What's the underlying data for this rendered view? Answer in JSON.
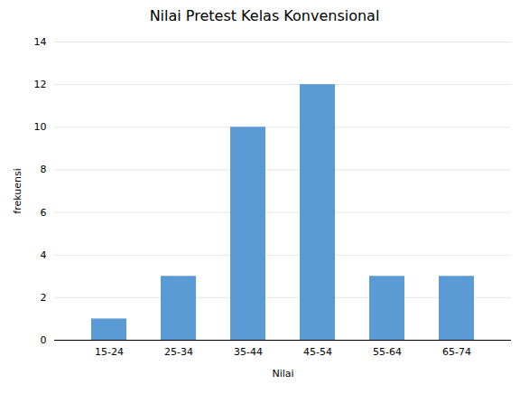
{
  "chart_data": {
    "type": "bar",
    "title": "Nilai Pretest Kelas Konvensional",
    "xlabel": "Nilai",
    "ylabel": "frekuensi",
    "categories": [
      "15-24",
      "25-34",
      "35-44",
      "45-54",
      "55-64",
      "65-74"
    ],
    "values": [
      1,
      3,
      10,
      12,
      3,
      3
    ],
    "color": "#5B9BD5",
    "ylim": [
      0,
      14
    ],
    "yticks": [
      0,
      2,
      4,
      6,
      8,
      10,
      12,
      14
    ],
    "grid": true
  }
}
